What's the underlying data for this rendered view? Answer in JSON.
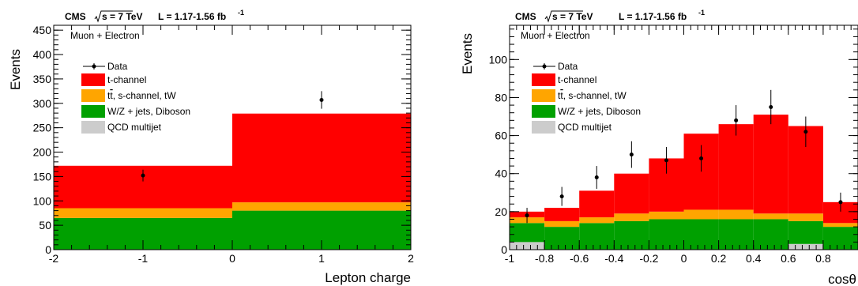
{
  "header": {
    "cms_label": "CMS",
    "energy": "s = 7 TeV",
    "lumi": "L = 1.17-1.56 fb",
    "lumi_sup": "-1"
  },
  "legend": {
    "data": "Data",
    "tchannel": "t-channel",
    "ttbar_prefix": "t",
    "ttbar_suffix": ", s-channel, tW",
    "wz": "W/Z + jets, Diboson",
    "qcd": "QCD multijet"
  },
  "chart_data": [
    {
      "type": "bar",
      "stacked": true,
      "sample_label": "Muon + Electron",
      "xlabel": "Lepton charge",
      "ylabel": "Events",
      "xlim": [
        -2,
        2
      ],
      "ylim": [
        0,
        460
      ],
      "x_ticks": [
        -2,
        -1,
        0,
        1,
        2
      ],
      "y_ticks": [
        0,
        50,
        100,
        150,
        200,
        250,
        300,
        350,
        400,
        450
      ],
      "bin_edges": [
        -2,
        0,
        2
      ],
      "series": [
        {
          "name": "QCD multijet",
          "color": "#cccccc",
          "values": [
            0,
            0
          ]
        },
        {
          "name": "W/Z + jets, Diboson",
          "color": "#00a000",
          "values": [
            65,
            80
          ]
        },
        {
          "name": "tt̄, s-channel, tW",
          "color": "#ffa500",
          "values": [
            20,
            17
          ]
        },
        {
          "name": "t-channel",
          "color": "#ff0000",
          "values": [
            87,
            182
          ]
        }
      ],
      "data_points": [
        {
          "x": -1,
          "y": 152,
          "err": 12
        },
        {
          "x": 1,
          "y": 307,
          "err": 18
        }
      ]
    },
    {
      "type": "bar",
      "stacked": true,
      "sample_label": "Muon + Electron",
      "xlabel": "cosθ",
      "ylabel": "Events",
      "xlim": [
        -1,
        1
      ],
      "ylim": [
        0,
        118
      ],
      "x_ticks": [
        -1,
        -0.8,
        -0.6,
        -0.4,
        -0.2,
        0,
        0.2,
        0.4,
        0.6,
        0.8
      ],
      "y_ticks": [
        0,
        20,
        40,
        60,
        80,
        100
      ],
      "bin_edges": [
        -1,
        -0.8,
        -0.6,
        -0.4,
        -0.2,
        0,
        0.2,
        0.4,
        0.6,
        0.8,
        1
      ],
      "series": [
        {
          "name": "QCD multijet",
          "color": "#cccccc",
          "values": [
            4,
            0,
            0,
            0,
            0,
            0,
            0,
            0,
            3,
            0
          ]
        },
        {
          "name": "W/Z + jets, Diboson",
          "color": "#00a000",
          "values": [
            10,
            12,
            14,
            15,
            16,
            16,
            16,
            16,
            12,
            12
          ]
        },
        {
          "name": "tt̄, s-channel, tW",
          "color": "#ffa500",
          "values": [
            3,
            3,
            3,
            4,
            4,
            5,
            5,
            3,
            4,
            2
          ]
        },
        {
          "name": "t-channel",
          "color": "#ff0000",
          "values": [
            3,
            7,
            14,
            21,
            28,
            40,
            45,
            52,
            46,
            11
          ]
        }
      ],
      "data_points": [
        {
          "x": -0.9,
          "y": 18,
          "err": 4
        },
        {
          "x": -0.7,
          "y": 28,
          "err": 5
        },
        {
          "x": -0.5,
          "y": 38,
          "err": 6
        },
        {
          "x": -0.3,
          "y": 50,
          "err": 7
        },
        {
          "x": -0.1,
          "y": 47,
          "err": 7
        },
        {
          "x": 0.1,
          "y": 48,
          "err": 7
        },
        {
          "x": 0.3,
          "y": 68,
          "err": 8
        },
        {
          "x": 0.5,
          "y": 75,
          "err": 9
        },
        {
          "x": 0.7,
          "y": 62,
          "err": 8
        },
        {
          "x": 0.9,
          "y": 25,
          "err": 5
        }
      ]
    }
  ]
}
